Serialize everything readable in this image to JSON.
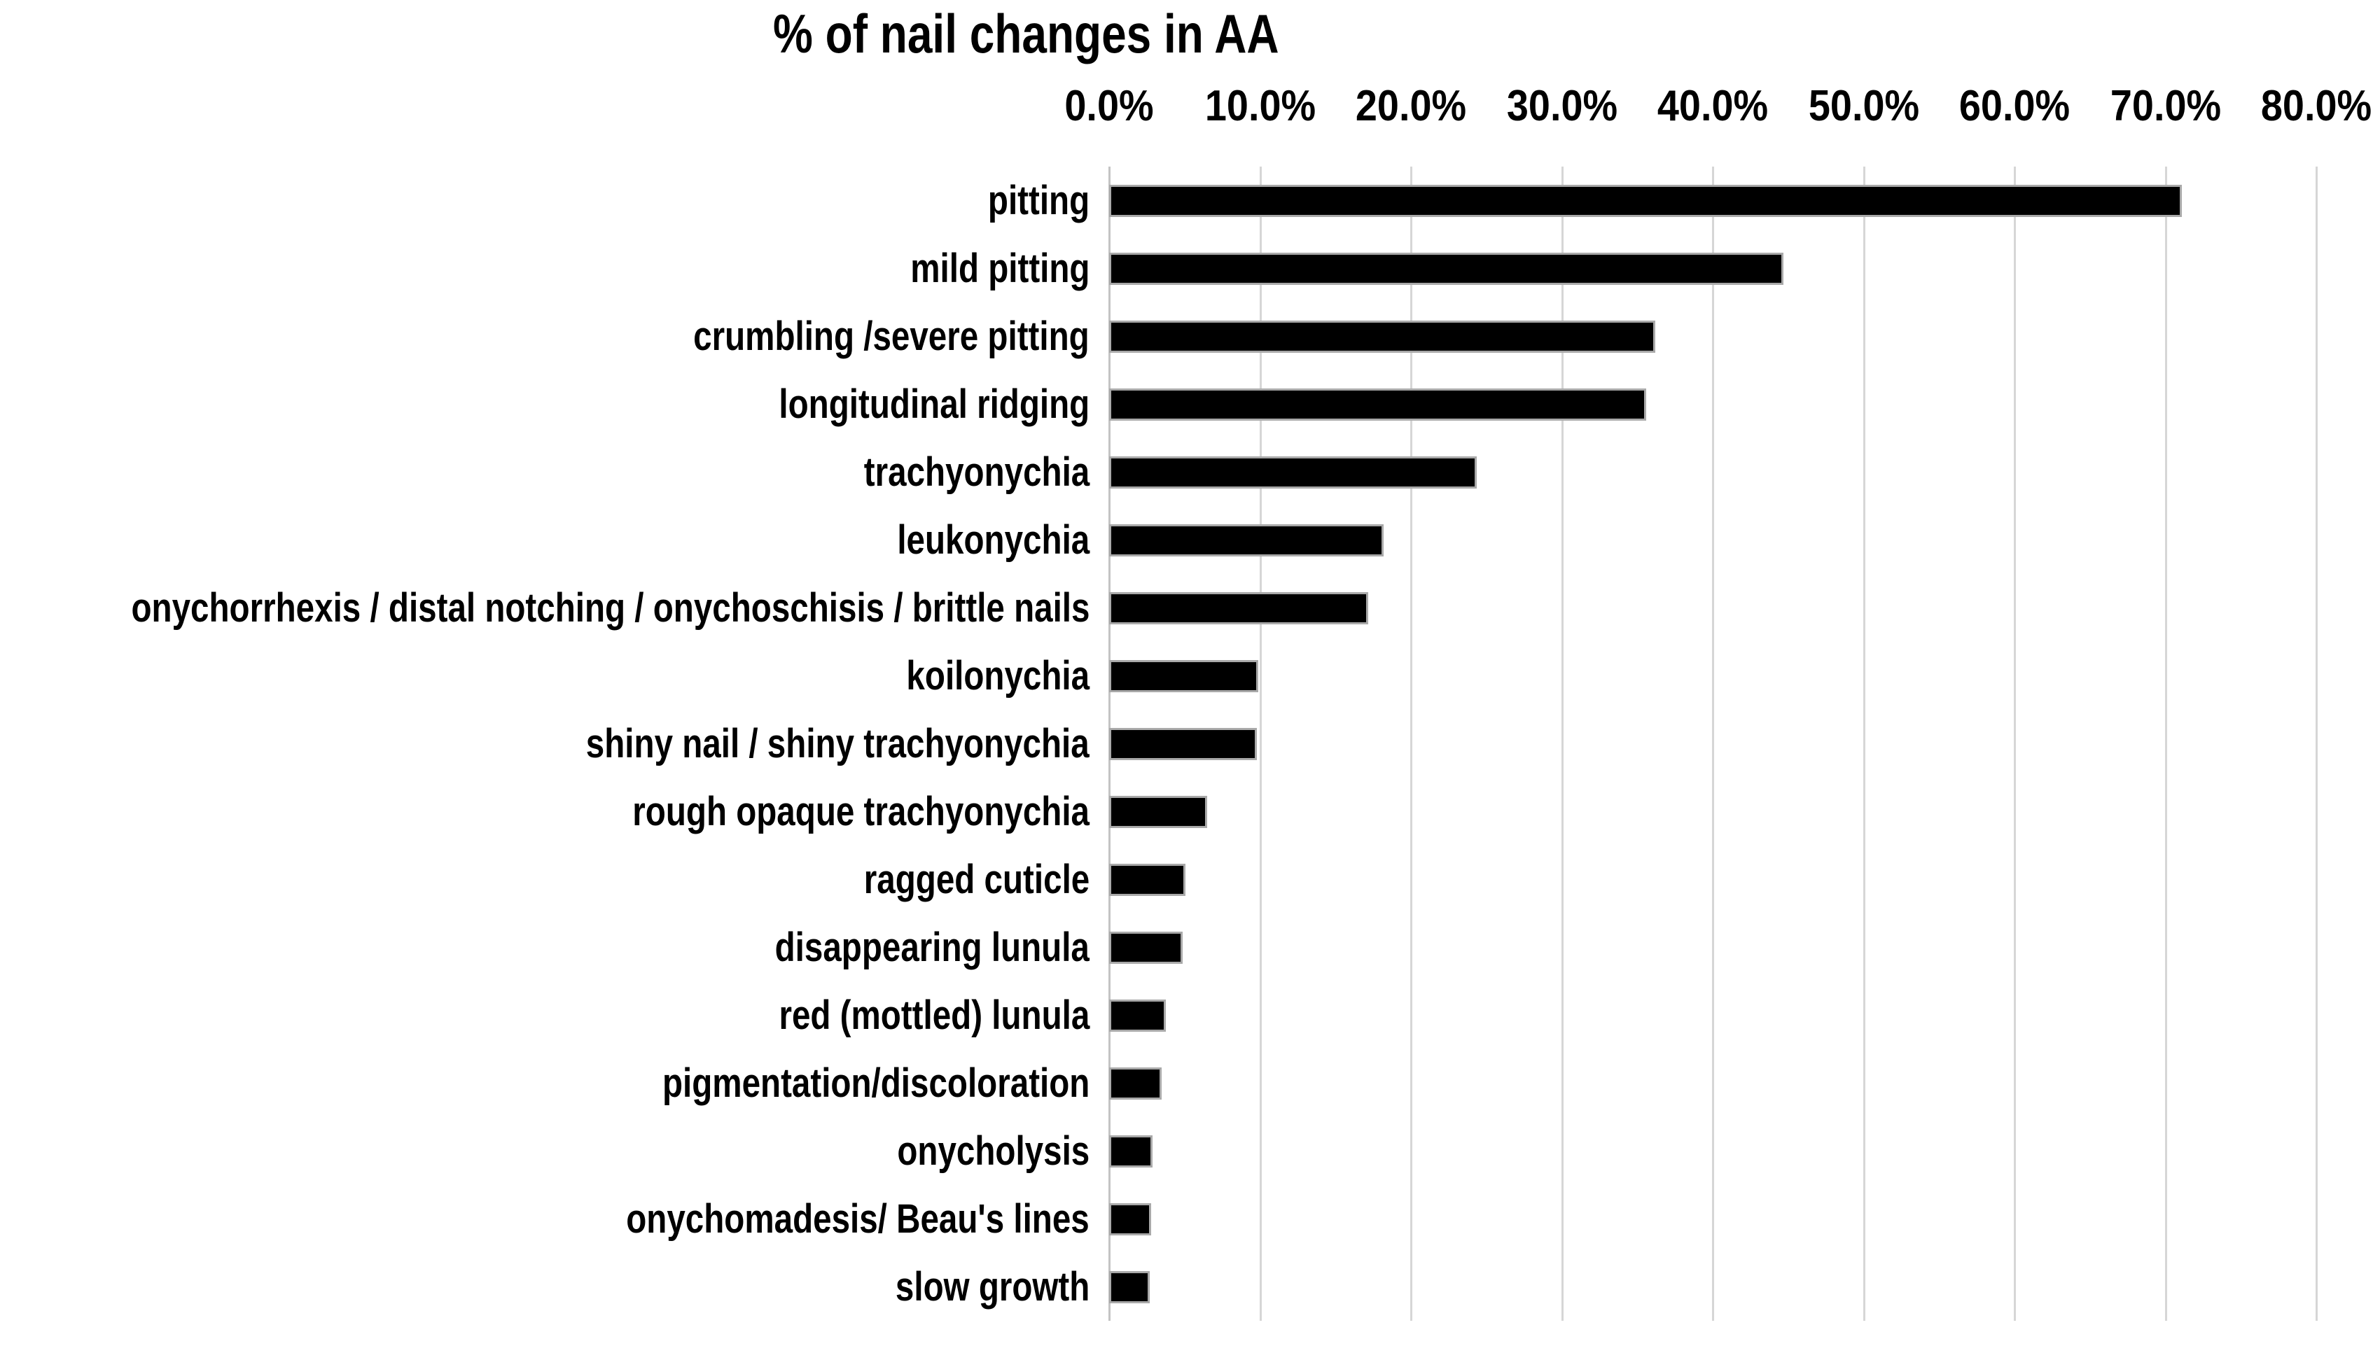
{
  "chart_data": {
    "type": "bar",
    "orientation": "horizontal",
    "title": "% of nail changes in AA",
    "categories": [
      "pitting",
      "mild pitting",
      "crumbling /severe pitting",
      "longitudinal ridging",
      "trachyonychia",
      "leukonychia",
      "onychorrhexis / distal notching / onychoschisis / brittle nails",
      "koilonychia",
      "shiny nail / shiny trachyonychia",
      "rough opaque trachyonychia",
      "ragged cuticle",
      "disappearing lunula",
      "red (mottled) lunula",
      "pigmentation/discoloration",
      "onycholysis",
      "onychomadesis/ Beau's lines",
      "slow growth"
    ],
    "values": [
      70.8,
      44.4,
      35.9,
      35.3,
      24.1,
      17.9,
      16.9,
      9.6,
      9.5,
      6.2,
      4.8,
      4.6,
      3.5,
      3.2,
      2.6,
      2.5,
      2.4
    ],
    "values_unit": "%",
    "x_axis": {
      "position": "top",
      "min": 0,
      "max": 80,
      "tick_step": 10,
      "tick_labels": [
        "0.0%",
        "10.0%",
        "20.0%",
        "30.0%",
        "40.0%",
        "50.0%",
        "60.0%",
        "70.0%",
        "80.0%"
      ]
    },
    "grid": true,
    "legend": false,
    "bar_color": "#000000",
    "bar_outline_color": "#a9a9a9",
    "gridline_color": "#d6d6d6",
    "background_color": "#ffffff",
    "text_color": "#000000"
  }
}
